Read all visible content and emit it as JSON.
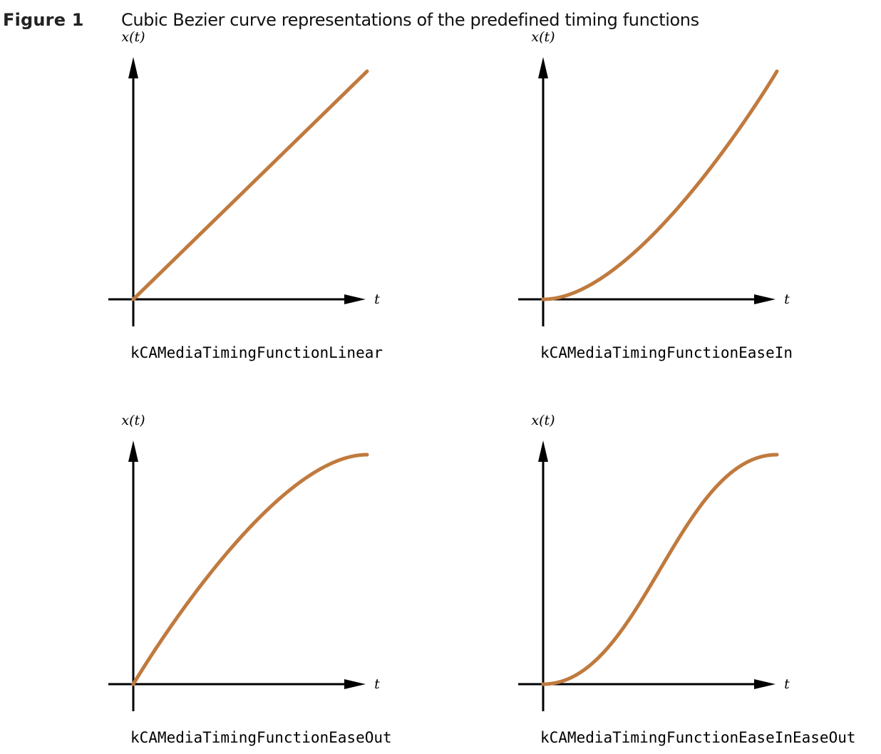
{
  "figure": {
    "label": "Figure 1",
    "caption": "Cubic Bezier curve representations of the predefined timing functions"
  },
  "colors": {
    "curve": "#c07a3e",
    "axis": "#000000",
    "background": "#ffffff"
  },
  "chart_data": [
    {
      "type": "line",
      "title": "kCAMediaTimingFunctionLinear",
      "xlabel": "t",
      "ylabel": "x(t)",
      "xlim": [
        0,
        1
      ],
      "ylim": [
        0,
        1
      ],
      "bezier_control_points": [
        [
          0,
          0
        ],
        [
          0,
          0
        ],
        [
          1,
          1
        ],
        [
          1,
          1
        ]
      ],
      "series": [
        {
          "x": [
            0,
            1
          ],
          "y": [
            0,
            1
          ]
        }
      ]
    },
    {
      "type": "line",
      "title": "kCAMediaTimingFunctionEaseIn",
      "xlabel": "t",
      "ylabel": "x(t)",
      "xlim": [
        0,
        1
      ],
      "ylim": [
        0,
        1
      ],
      "bezier_control_points": [
        [
          0,
          0
        ],
        [
          0.42,
          0
        ],
        [
          1,
          1
        ],
        [
          1,
          1
        ]
      ],
      "series": [
        {
          "x": [
            0,
            0.1,
            0.2,
            0.3,
            0.4,
            0.5,
            0.6,
            0.7,
            0.8,
            0.9,
            1
          ],
          "y": [
            0,
            0.01,
            0.05,
            0.11,
            0.19,
            0.3,
            0.42,
            0.56,
            0.7,
            0.85,
            1
          ]
        }
      ]
    },
    {
      "type": "line",
      "title": "kCAMediaTimingFunctionEaseOut",
      "xlabel": "t",
      "ylabel": "x(t)",
      "xlim": [
        0,
        1
      ],
      "ylim": [
        0,
        1
      ],
      "bezier_control_points": [
        [
          0,
          0
        ],
        [
          0,
          0
        ],
        [
          0.58,
          1
        ],
        [
          1,
          1
        ]
      ],
      "series": [
        {
          "x": [
            0,
            0.1,
            0.2,
            0.3,
            0.4,
            0.5,
            0.6,
            0.7,
            0.8,
            0.9,
            1
          ],
          "y": [
            0,
            0.16,
            0.31,
            0.45,
            0.58,
            0.7,
            0.8,
            0.89,
            0.95,
            0.99,
            1
          ]
        }
      ]
    },
    {
      "type": "line",
      "title": "kCAMediaTimingFunctionEaseInEaseOut",
      "xlabel": "t",
      "ylabel": "x(t)",
      "xlim": [
        0,
        1
      ],
      "ylim": [
        0,
        1
      ],
      "bezier_control_points": [
        [
          0,
          0
        ],
        [
          0.42,
          0
        ],
        [
          0.58,
          1
        ],
        [
          1,
          1
        ]
      ],
      "series": [
        {
          "x": [
            0,
            0.1,
            0.2,
            0.3,
            0.4,
            0.5,
            0.6,
            0.7,
            0.8,
            0.9,
            1
          ],
          "y": [
            0,
            0.02,
            0.07,
            0.16,
            0.32,
            0.5,
            0.68,
            0.84,
            0.93,
            0.98,
            1
          ]
        }
      ]
    }
  ]
}
